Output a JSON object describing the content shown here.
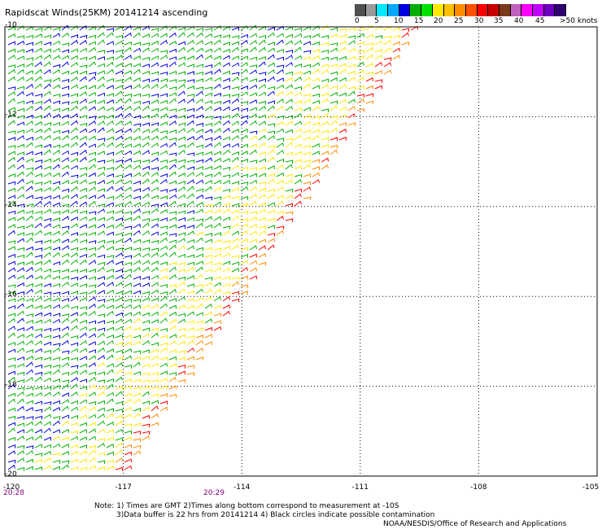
{
  "title": "Rapidscat Winds(25KM) 20141214 ascending",
  "scale": {
    "colors": [
      "#505050",
      "#9a9a9a",
      "#00e8ff",
      "#00a8ff",
      "#0000e0",
      "#00b000",
      "#00e000",
      "#ffe800",
      "#ffc000",
      "#ff8c00",
      "#ff5000",
      "#ff0000",
      "#c80000",
      "#7a3a1a",
      "#c060c0",
      "#ff00ff",
      "#c000ff",
      "#7000c0",
      "#300070"
    ],
    "labels": [
      "0",
      "5",
      "10",
      "15",
      "20",
      "25",
      "30",
      "35",
      "40",
      "45",
      ">50 knots"
    ],
    "barb_colors": {
      "calm": "#0000e0",
      "moderate": "#00b000",
      "fresh": "#ffe800",
      "strong": "#ff8c00",
      "gale": "#ff0000"
    }
  },
  "axes": {
    "lat_labels": [
      "-10",
      "-12",
      "-14",
      "-16",
      "-18",
      "-20"
    ],
    "lon_labels": [
      "-120",
      "-117",
      "-114",
      "-111",
      "-108",
      "-105"
    ],
    "lat_values": [
      -10,
      -12,
      -14,
      -16,
      -18,
      -20
    ],
    "lon_values": [
      -120,
      -117,
      -114,
      -111,
      -108,
      -105
    ]
  },
  "times": [
    "20:28",
    "20:29"
  ],
  "notes": {
    "line1": "Note: 1) Times are GMT 2)Times along bottom correspond to measurement at -10S",
    "line2": "3)Data buffer is 22 hrs from 20141214 4) Black circles indicate possible contamination",
    "line3": "NOAA/NESDIS/Office of Research and Applications"
  }
}
